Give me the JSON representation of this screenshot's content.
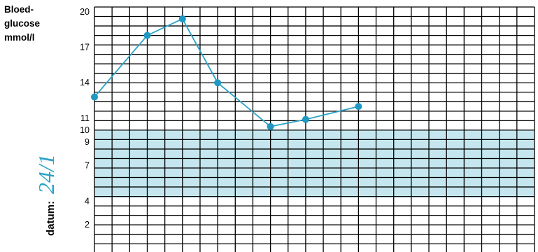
{
  "chart_data": {
    "type": "line",
    "ylabel": [
      "Bloed-",
      "glucose",
      "mmol/l"
    ],
    "yticks": [
      20,
      17,
      14,
      11,
      10,
      9,
      7,
      4,
      2
    ],
    "ylim": [
      0,
      20.4
    ],
    "target_range": [
      4.3,
      10
    ],
    "x_columns": 25,
    "series": [
      {
        "x": [
          0,
          3,
          5,
          7,
          10,
          12,
          15
        ],
        "values": [
          12.8,
          18,
          19.4,
          14,
          10.3,
          10.9,
          12
        ]
      }
    ],
    "grid": true,
    "datum_label": "datum:",
    "datum_value": "24/1"
  },
  "colors": {
    "line": "#2aa3c8",
    "marker": "#1f98c2",
    "band": "#c5e6ee",
    "grid": "#000000"
  }
}
